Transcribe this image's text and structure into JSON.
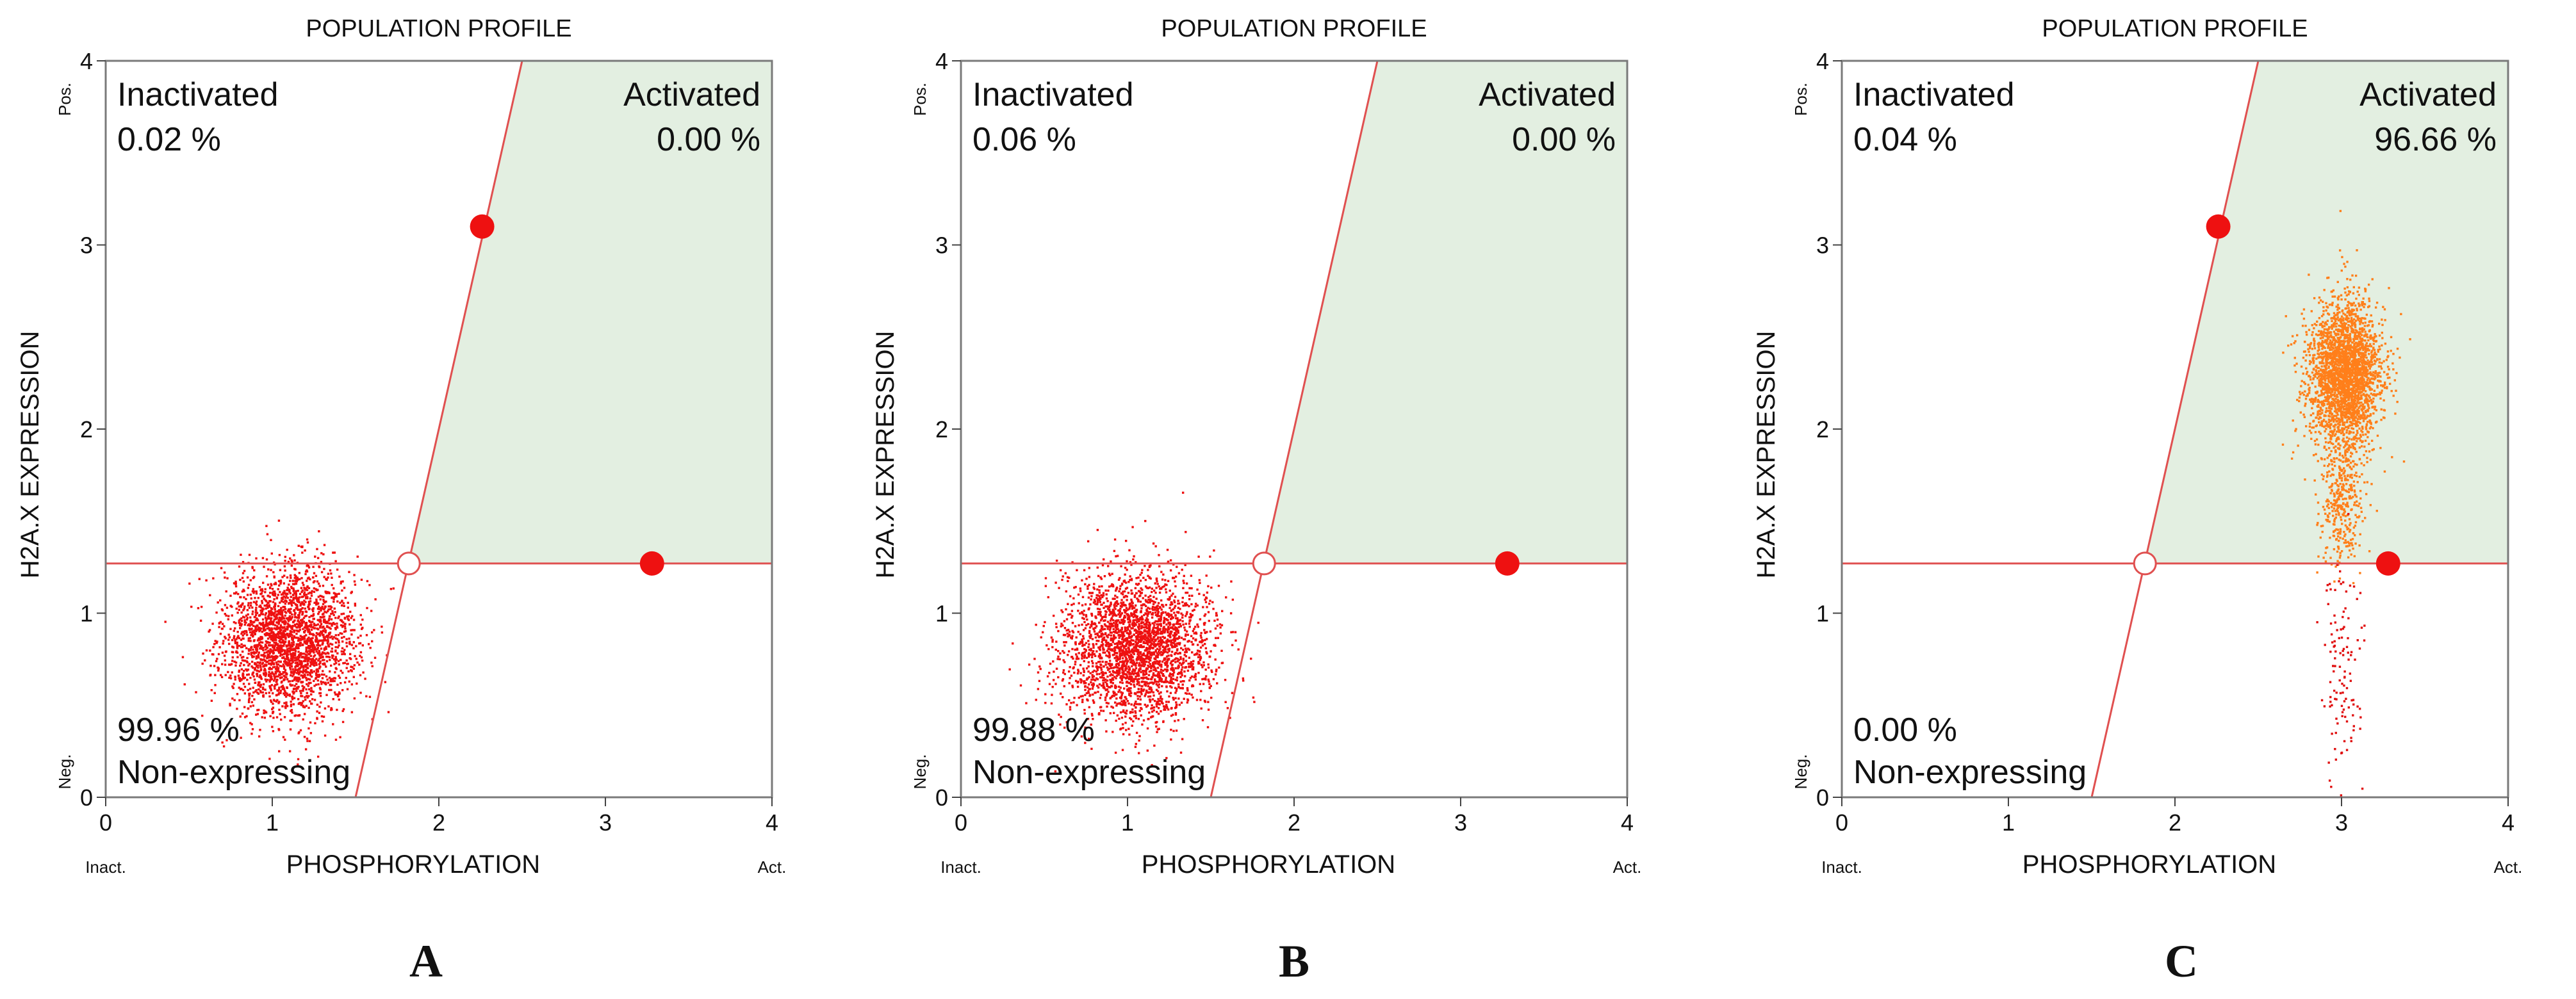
{
  "colors": {
    "plot_border": "#7a7a7a",
    "activated_region": "#e3efe1",
    "gate_line": "#e05050",
    "gate_marker": "#ee1111",
    "tick": "#444444",
    "text": "#111111",
    "dots_A": "#ee1111",
    "dots_B": "#ee1111",
    "dots_C_high": "#ff7f1a",
    "dots_C_low": "#e01010"
  },
  "chart_data": [
    {
      "type": "scatter",
      "panel": "A",
      "title": "POPULATION PROFILE",
      "xlabel": "PHOSPHORYLATION",
      "ylabel": "H2A.X EXPRESSION",
      "xlim": [
        0,
        4
      ],
      "ylim": [
        0,
        4
      ],
      "xticks": [
        "0",
        "1",
        "2",
        "3",
        "4"
      ],
      "yticks": [
        "0",
        "1",
        "2",
        "3",
        "4"
      ],
      "x_end_labels": {
        "low": "Inact.",
        "high": "Act."
      },
      "y_end_labels": {
        "low": "Neg.",
        "high": "Pos."
      },
      "gate": {
        "horizontal_y": 1.27,
        "intersection": [
          1.82,
          1.27
        ],
        "diagonal_points": [
          [
            1.5,
            0.0
          ],
          [
            2.5,
            4.0
          ]
        ],
        "markers": [
          [
            2.26,
            3.1
          ],
          [
            3.28,
            1.27
          ]
        ]
      },
      "quadrants": {
        "inactivated": {
          "label": "Inactivated",
          "value": "0.02 %"
        },
        "activated": {
          "label": "Activated",
          "value": "0.00 %"
        },
        "non_expressing": {
          "label": "Non-expressing",
          "value": "99.96 %"
        }
      },
      "populations": [
        {
          "name": "main cluster",
          "center": [
            1.1,
            0.85
          ],
          "spread": [
            0.2,
            0.2
          ],
          "count": 2600,
          "color_key": "dots_A"
        }
      ]
    },
    {
      "type": "scatter",
      "panel": "B",
      "title": "POPULATION PROFILE",
      "xlabel": "PHOSPHORYLATION",
      "ylabel": "H2A.X EXPRESSION",
      "xlim": [
        0,
        4
      ],
      "ylim": [
        0,
        4
      ],
      "xticks": [
        "0",
        "1",
        "2",
        "3",
        "4"
      ],
      "yticks": [
        "0",
        "1",
        "2",
        "3",
        "4"
      ],
      "x_end_labels": {
        "low": "Inact.",
        "high": "Act."
      },
      "y_end_labels": {
        "low": "Neg.",
        "high": "Pos."
      },
      "gate": {
        "horizontal_y": 1.27,
        "intersection": [
          1.82,
          1.27
        ],
        "diagonal_points": [
          [
            1.5,
            0.0
          ],
          [
            2.5,
            4.0
          ]
        ],
        "markers": [
          [
            3.28,
            1.27
          ]
        ]
      },
      "quadrants": {
        "inactivated": {
          "label": "Inactivated",
          "value": "0.06 %"
        },
        "activated": {
          "label": "Activated",
          "value": "0.00 %"
        },
        "non_expressing": {
          "label": "Non-expressing",
          "value": "99.88 %"
        }
      },
      "populations": [
        {
          "name": "main cluster",
          "center": [
            1.05,
            0.82
          ],
          "spread": [
            0.22,
            0.2
          ],
          "count": 2800,
          "color_key": "dots_B"
        }
      ]
    },
    {
      "type": "scatter",
      "panel": "C",
      "title": "POPULATION PROFILE",
      "xlabel": "PHOSPHORYLATION",
      "ylabel": "H2A.X EXPRESSION",
      "xlim": [
        0,
        4
      ],
      "ylim": [
        0,
        4
      ],
      "xticks": [
        "0",
        "1",
        "2",
        "3",
        "4"
      ],
      "yticks": [
        "0",
        "1",
        "2",
        "3",
        "4"
      ],
      "x_end_labels": {
        "low": "Inact.",
        "high": "Act."
      },
      "y_end_labels": {
        "low": "Neg.",
        "high": "Pos."
      },
      "gate": {
        "horizontal_y": 1.27,
        "intersection": [
          1.82,
          1.27
        ],
        "diagonal_points": [
          [
            1.5,
            0.0
          ],
          [
            2.5,
            4.0
          ]
        ],
        "markers": [
          [
            2.26,
            3.1
          ],
          [
            3.28,
            1.27
          ]
        ]
      },
      "quadrants": {
        "inactivated": {
          "label": "Inactivated",
          "value": "0.04 %"
        },
        "activated": {
          "label": "Activated",
          "value": "96.66 %"
        },
        "non_expressing": {
          "label": "Non-expressing",
          "value": "0.00 %"
        }
      },
      "populations": [
        {
          "name": "activated cluster",
          "center": [
            3.02,
            2.3
          ],
          "spread": [
            0.11,
            0.2
          ],
          "count": 2600,
          "color_key": "dots_C_high"
        },
        {
          "name": "activated tail",
          "center": [
            3.0,
            1.65
          ],
          "spread": [
            0.07,
            0.22
          ],
          "count": 400,
          "color_key": "dots_C_high"
        },
        {
          "name": "low tail",
          "center": [
            3.0,
            0.7
          ],
          "spread": [
            0.06,
            0.35
          ],
          "count": 120,
          "color_key": "dots_C_low"
        }
      ]
    }
  ]
}
